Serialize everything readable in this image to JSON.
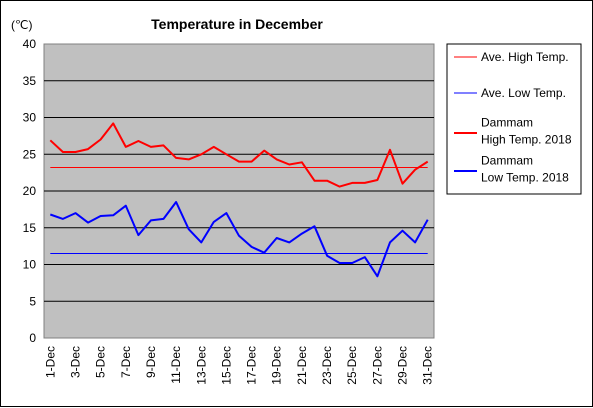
{
  "chart_data": {
    "type": "line",
    "title": "Temperature in December",
    "unit_label": "(℃)",
    "ylim": [
      0,
      40
    ],
    "y_ticks": [
      "0",
      "5",
      "10",
      "15",
      "20",
      "25",
      "30",
      "35",
      "40"
    ],
    "x_tick_labels": [
      "1-Dec",
      "3-Dec",
      "5-Dec",
      "7-Dec",
      "9-Dec",
      "11-Dec",
      "13-Dec",
      "15-Dec",
      "17-Dec",
      "19-Dec",
      "21-Dec",
      "23-Dec",
      "25-Dec",
      "27-Dec",
      "29-Dec",
      "31-Dec"
    ],
    "grid": true,
    "legend_position": "right",
    "x": [
      1,
      2,
      3,
      4,
      5,
      6,
      7,
      8,
      9,
      10,
      11,
      12,
      13,
      14,
      15,
      16,
      17,
      18,
      19,
      20,
      21,
      22,
      23,
      24,
      25,
      26,
      27,
      28,
      29,
      30,
      31
    ],
    "series": [
      {
        "name": "Ave. High Temp.",
        "color": "#ff0000",
        "style": "thin",
        "values": [
          23.2,
          23.2,
          23.2,
          23.2,
          23.2,
          23.2,
          23.2,
          23.2,
          23.2,
          23.2,
          23.2,
          23.2,
          23.2,
          23.2,
          23.2,
          23.2,
          23.2,
          23.2,
          23.2,
          23.2,
          23.2,
          23.2,
          23.2,
          23.2,
          23.2,
          23.2,
          23.2,
          23.2,
          23.2,
          23.2,
          23.2
        ]
      },
      {
        "name": "Ave. Low Temp.",
        "color": "#0000ff",
        "style": "thin",
        "values": [
          11.5,
          11.5,
          11.5,
          11.5,
          11.5,
          11.5,
          11.5,
          11.5,
          11.5,
          11.5,
          11.5,
          11.5,
          11.5,
          11.5,
          11.5,
          11.5,
          11.5,
          11.5,
          11.5,
          11.5,
          11.5,
          11.5,
          11.5,
          11.5,
          11.5,
          11.5,
          11.5,
          11.5,
          11.5,
          11.5,
          11.5
        ]
      },
      {
        "name": "Dammam High Temp. 2018",
        "name_lines": [
          "Dammam",
          "High Temp. 2018"
        ],
        "color": "#ff0000",
        "style": "thick",
        "values": [
          26.9,
          25.3,
          25.3,
          25.7,
          27.0,
          29.2,
          26.0,
          26.8,
          26.0,
          26.2,
          24.5,
          24.3,
          25.0,
          26.0,
          25.0,
          24.0,
          24.0,
          25.5,
          24.3,
          23.6,
          23.9,
          21.4,
          21.4,
          20.6,
          21.1,
          21.1,
          21.5,
          25.6,
          21.0,
          22.9,
          24.0
        ]
      },
      {
        "name": "Dammam Low Temp. 2018",
        "name_lines": [
          "Dammam",
          "Low Temp. 2018"
        ],
        "color": "#0000ff",
        "style": "thick",
        "values": [
          16.8,
          16.2,
          17.0,
          15.7,
          16.6,
          16.7,
          18.0,
          14.0,
          16.0,
          16.2,
          18.5,
          14.8,
          13.0,
          15.8,
          17.0,
          13.9,
          12.4,
          11.6,
          13.6,
          13.0,
          14.2,
          15.2,
          11.2,
          10.2,
          10.2,
          11.0,
          8.4,
          13.0,
          14.6,
          13.0,
          16.1
        ]
      }
    ]
  }
}
